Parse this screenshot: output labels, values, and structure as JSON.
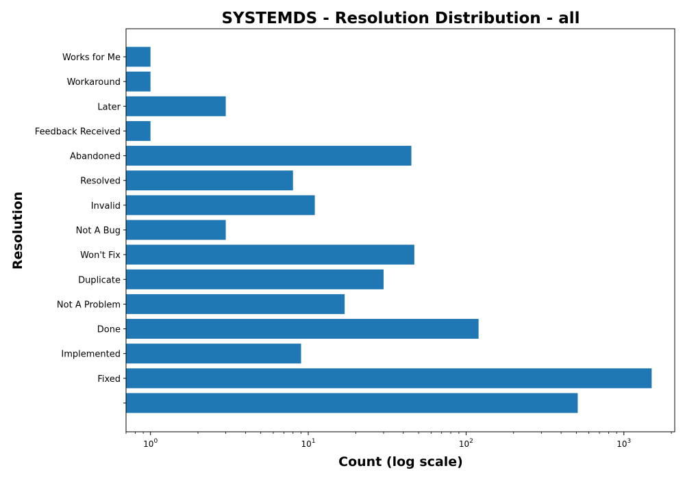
{
  "chart_data": {
    "type": "bar",
    "orientation": "horizontal",
    "title": "SYSTEMDS - Resolution Distribution - all",
    "xlabel": "Count (log scale)",
    "ylabel": "Resolution",
    "x_scale": "log",
    "xlim": [
      0.7,
      2100
    ],
    "x_ticks": [
      {
        "value": 1,
        "base": "10",
        "exp": "0"
      },
      {
        "value": 10,
        "base": "10",
        "exp": "1"
      },
      {
        "value": 100,
        "base": "10",
        "exp": "2"
      },
      {
        "value": 1000,
        "base": "10",
        "exp": "3"
      }
    ],
    "categories": [
      "Works for Me",
      "Workaround",
      "Later",
      "Feedback Received",
      "Abandoned",
      "Resolved",
      "Invalid",
      "Not A Bug",
      "Won't Fix",
      "Duplicate",
      "Not A Problem",
      "Done",
      "Implemented",
      "Fixed",
      ""
    ],
    "values": [
      1,
      1,
      3,
      1,
      45,
      8,
      11,
      3,
      47,
      30,
      17,
      120,
      9,
      1500,
      510
    ],
    "color": "#1f77b4",
    "grid": false,
    "legend": "none"
  }
}
